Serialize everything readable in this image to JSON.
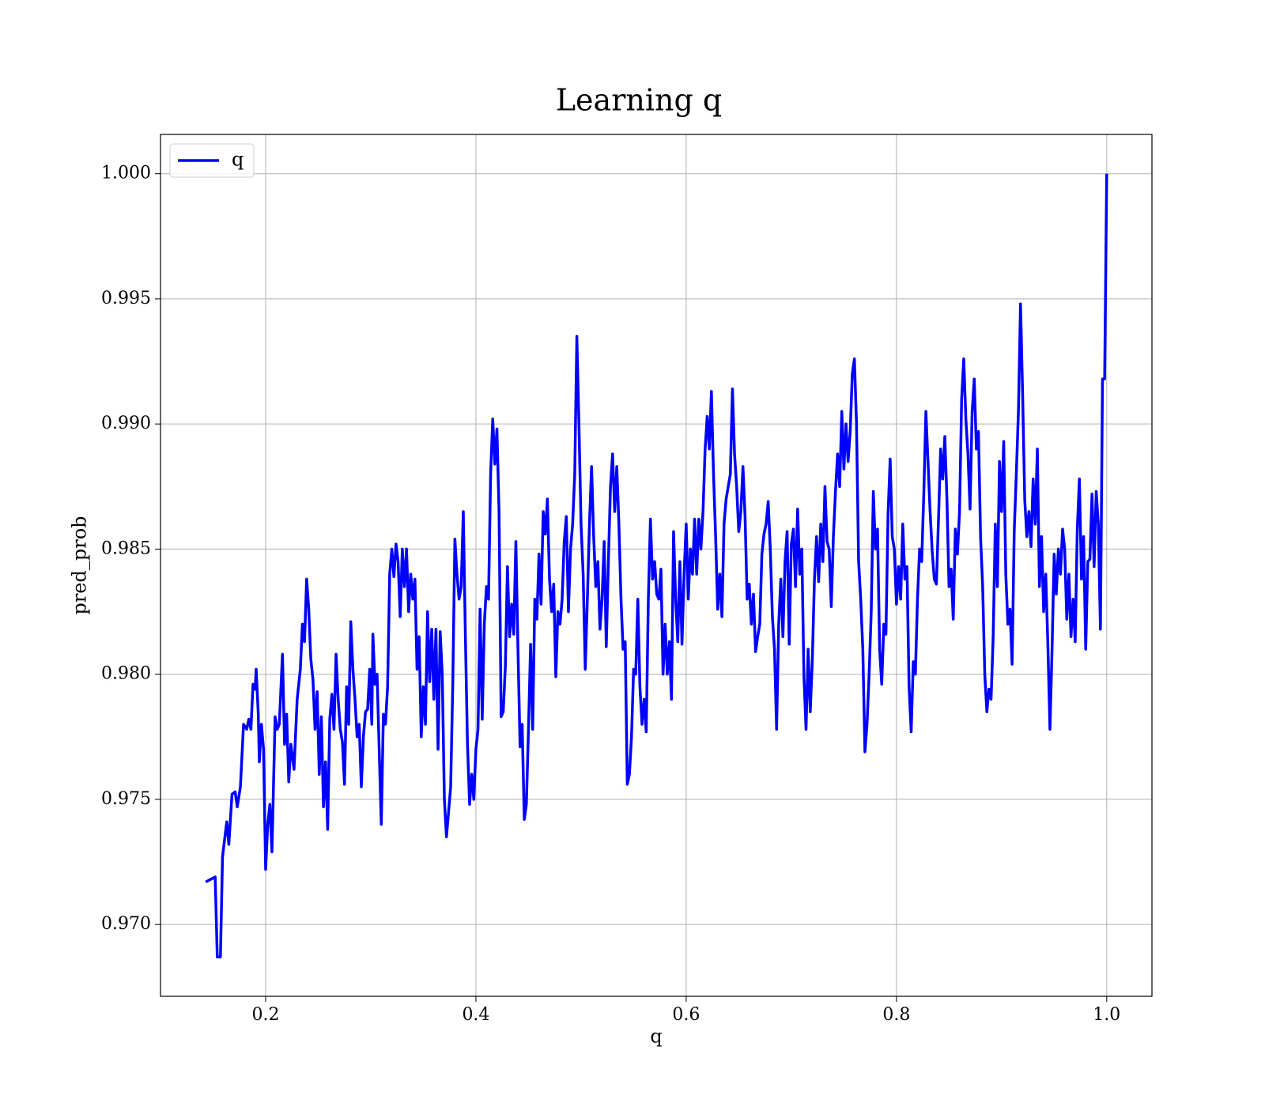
{
  "chart_data": {
    "type": "line",
    "title": "Learning q",
    "x_label": "q",
    "y_label": "pred_prob",
    "xlim": [
      0.1,
      1.043
    ],
    "ylim": [
      0.96713,
      1.00157
    ],
    "xticks": [
      0.2,
      0.4,
      0.6,
      0.8,
      {
        "value": 1,
        "label": "1.0"
      }
    ],
    "yticks": [
      {
        "value": 0.97,
        "label": "0.970"
      },
      0.975,
      {
        "value": 0.98,
        "label": "0.980"
      },
      0.985,
      {
        "value": 0.99,
        "label": "0.990"
      },
      0.995,
      {
        "value": 1,
        "label": "1.000"
      }
    ],
    "grid": true,
    "legend": "upper left",
    "x": [
      0.143,
      0.152,
      0.154,
      0.157,
      0.159,
      0.163,
      0.165,
      0.168,
      0.171,
      0.173,
      0.176,
      0.179,
      0.182,
      0.184,
      0.186,
      0.188,
      0.19,
      0.191,
      0.193,
      0.194,
      0.196,
      0.198,
      0.2,
      0.202,
      0.204,
      0.206,
      0.209,
      0.211,
      0.213,
      0.216,
      0.218,
      0.22,
      0.222,
      0.224,
      0.227,
      0.23,
      0.233,
      0.235,
      0.237,
      0.239,
      0.241,
      0.243,
      0.245,
      0.247,
      0.249,
      0.251,
      0.253,
      0.255,
      0.257,
      0.259,
      0.261,
      0.263,
      0.265,
      0.267,
      0.269,
      0.271,
      0.273,
      0.275,
      0.277,
      0.279,
      0.281,
      0.283,
      0.285,
      0.287,
      0.289,
      0.291,
      0.293,
      0.295,
      0.297,
      0.299,
      0.301,
      0.302,
      0.304,
      0.306,
      0.308,
      0.31,
      0.312,
      0.314,
      0.316,
      0.318,
      0.32,
      0.322,
      0.324,
      0.326,
      0.328,
      0.33,
      0.332,
      0.334,
      0.336,
      0.338,
      0.34,
      0.342,
      0.344,
      0.346,
      0.348,
      0.35,
      0.352,
      0.354,
      0.356,
      0.358,
      0.36,
      0.362,
      0.364,
      0.366,
      0.368,
      0.37,
      0.372,
      0.374,
      0.376,
      0.378,
      0.38,
      0.382,
      0.384,
      0.386,
      0.388,
      0.39,
      0.392,
      0.394,
      0.396,
      0.398,
      0.4,
      0.402,
      0.404,
      0.406,
      0.408,
      0.41,
      0.412,
      0.414,
      0.416,
      0.418,
      0.42,
      0.422,
      0.424,
      0.426,
      0.428,
      0.43,
      0.432,
      0.434,
      0.436,
      0.438,
      0.44,
      0.442,
      0.444,
      0.446,
      0.448,
      0.45,
      0.452,
      0.454,
      0.456,
      0.458,
      0.46,
      0.462,
      0.464,
      0.466,
      0.468,
      0.47,
      0.472,
      0.474,
      0.476,
      0.478,
      0.48,
      0.482,
      0.484,
      0.486,
      0.488,
      0.49,
      0.492,
      0.494,
      0.496,
      0.498,
      0.5,
      0.502,
      0.504,
      0.506,
      0.508,
      0.51,
      0.512,
      0.514,
      0.516,
      0.518,
      0.52,
      0.522,
      0.524,
      0.526,
      0.528,
      0.53,
      0.532,
      0.534,
      0.536,
      0.538,
      0.54,
      0.542,
      0.544,
      0.546,
      0.548,
      0.55,
      0.552,
      0.554,
      0.556,
      0.558,
      0.56,
      0.562,
      0.564,
      0.566,
      0.568,
      0.57,
      0.572,
      0.574,
      0.576,
      0.578,
      0.58,
      0.582,
      0.584,
      0.586,
      0.588,
      0.59,
      0.592,
      0.594,
      0.596,
      0.598,
      0.6,
      0.602,
      0.604,
      0.606,
      0.608,
      0.61,
      0.612,
      0.614,
      0.616,
      0.618,
      0.62,
      0.622,
      0.624,
      0.626,
      0.628,
      0.63,
      0.632,
      0.634,
      0.636,
      0.638,
      0.64,
      0.642,
      0.644,
      0.646,
      0.648,
      0.65,
      0.652,
      0.654,
      0.656,
      0.658,
      0.66,
      0.662,
      0.664,
      0.666,
      0.668,
      0.67,
      0.672,
      0.674,
      0.676,
      0.678,
      0.68,
      0.682,
      0.684,
      0.686,
      0.688,
      0.69,
      0.692,
      0.694,
      0.696,
      0.698,
      0.7,
      0.702,
      0.704,
      0.706,
      0.708,
      0.71,
      0.712,
      0.714,
      0.716,
      0.718,
      0.72,
      0.722,
      0.724,
      0.726,
      0.728,
      0.73,
      0.732,
      0.734,
      0.736,
      0.738,
      0.74,
      0.742,
      0.744,
      0.746,
      0.748,
      0.75,
      0.752,
      0.754,
      0.756,
      0.758,
      0.76,
      0.762,
      0.764,
      0.766,
      0.768,
      0.77,
      0.772,
      0.774,
      0.776,
      0.778,
      0.78,
      0.782,
      0.784,
      0.786,
      0.788,
      0.79,
      0.792,
      0.794,
      0.796,
      0.798,
      0.8,
      0.802,
      0.804,
      0.806,
      0.808,
      0.81,
      0.812,
      0.814,
      0.816,
      0.818,
      0.82,
      0.822,
      0.824,
      0.826,
      0.828,
      0.83,
      0.832,
      0.834,
      0.836,
      0.838,
      0.84,
      0.842,
      0.844,
      0.846,
      0.848,
      0.85,
      0.852,
      0.854,
      0.856,
      0.858,
      0.86,
      0.862,
      0.864,
      0.866,
      0.868,
      0.87,
      0.872,
      0.874,
      0.876,
      0.878,
      0.88,
      0.882,
      0.884,
      0.886,
      0.888,
      0.89,
      0.892,
      0.894,
      0.896,
      0.898,
      0.9,
      0.902,
      0.904,
      0.906,
      0.908,
      0.91,
      0.912,
      0.914,
      0.916,
      0.918,
      0.92,
      0.922,
      0.924,
      0.926,
      0.928,
      0.93,
      0.932,
      0.934,
      0.936,
      0.938,
      0.94,
      0.942,
      0.944,
      0.946,
      0.948,
      0.95,
      0.952,
      0.954,
      0.956,
      0.958,
      0.96,
      0.962,
      0.964,
      0.966,
      0.968,
      0.97,
      0.972,
      0.974,
      0.976,
      0.978,
      0.98,
      0.982,
      0.984,
      0.986,
      0.988,
      0.99,
      0.992,
      0.994,
      0.996,
      0.998,
      1.0
    ],
    "series": [
      {
        "name": "q",
        "color": "#0000ff",
        "values": [
          0.9717,
          0.9719,
          0.9687,
          0.9687,
          0.9727,
          0.9741,
          0.9732,
          0.9752,
          0.9753,
          0.9747,
          0.9755,
          0.978,
          0.9778,
          0.9782,
          0.9778,
          0.9796,
          0.9794,
          0.9802,
          0.9784,
          0.9765,
          0.978,
          0.977,
          0.9722,
          0.974,
          0.9748,
          0.9729,
          0.9783,
          0.9778,
          0.978,
          0.9808,
          0.9772,
          0.9784,
          0.9757,
          0.9772,
          0.9762,
          0.979,
          0.9802,
          0.982,
          0.9813,
          0.9838,
          0.9826,
          0.9806,
          0.9798,
          0.9778,
          0.9793,
          0.976,
          0.9783,
          0.9747,
          0.9765,
          0.9738,
          0.9782,
          0.9792,
          0.9778,
          0.9808,
          0.979,
          0.9778,
          0.9773,
          0.9756,
          0.9795,
          0.978,
          0.9821,
          0.9802,
          0.979,
          0.9775,
          0.978,
          0.9755,
          0.9775,
          0.9785,
          0.9786,
          0.9802,
          0.978,
          0.9816,
          0.9796,
          0.98,
          0.977,
          0.974,
          0.9784,
          0.978,
          0.9795,
          0.984,
          0.985,
          0.9839,
          0.9852,
          0.9845,
          0.9823,
          0.985,
          0.9835,
          0.985,
          0.9825,
          0.984,
          0.983,
          0.9838,
          0.9802,
          0.9815,
          0.9775,
          0.9795,
          0.978,
          0.9825,
          0.9797,
          0.9818,
          0.979,
          0.9818,
          0.977,
          0.9817,
          0.98,
          0.975,
          0.9735,
          0.9745,
          0.9755,
          0.9796,
          0.9854,
          0.984,
          0.983,
          0.9835,
          0.9865,
          0.9815,
          0.9772,
          0.9748,
          0.976,
          0.975,
          0.977,
          0.9778,
          0.9826,
          0.9782,
          0.982,
          0.9835,
          0.983,
          0.988,
          0.9902,
          0.9884,
          0.9898,
          0.9865,
          0.9783,
          0.9785,
          0.9803,
          0.9843,
          0.9815,
          0.9828,
          0.9816,
          0.9853,
          0.981,
          0.9771,
          0.978,
          0.9742,
          0.9748,
          0.9778,
          0.9812,
          0.9778,
          0.983,
          0.9822,
          0.9848,
          0.9828,
          0.9865,
          0.9856,
          0.987,
          0.9838,
          0.9825,
          0.9836,
          0.9799,
          0.9825,
          0.982,
          0.983,
          0.9853,
          0.9863,
          0.9825,
          0.985,
          0.986,
          0.988,
          0.9935,
          0.99,
          0.986,
          0.984,
          0.9802,
          0.983,
          0.986,
          0.9883,
          0.9855,
          0.9835,
          0.9845,
          0.9818,
          0.983,
          0.9853,
          0.9811,
          0.9845,
          0.9875,
          0.9888,
          0.9865,
          0.9883,
          0.986,
          0.983,
          0.981,
          0.9813,
          0.9756,
          0.976,
          0.9775,
          0.9802,
          0.98,
          0.983,
          0.9795,
          0.978,
          0.979,
          0.9777,
          0.983,
          0.9862,
          0.9838,
          0.9845,
          0.9832,
          0.983,
          0.9842,
          0.98,
          0.982,
          0.98,
          0.9813,
          0.979,
          0.9857,
          0.983,
          0.9813,
          0.9845,
          0.9812,
          0.984,
          0.986,
          0.983,
          0.985,
          0.984,
          0.9862,
          0.984,
          0.9862,
          0.985,
          0.9865,
          0.989,
          0.9903,
          0.989,
          0.9913,
          0.988,
          0.9855,
          0.9826,
          0.984,
          0.9823,
          0.986,
          0.987,
          0.9875,
          0.988,
          0.9914,
          0.9888,
          0.9875,
          0.9857,
          0.9865,
          0.9883,
          0.9863,
          0.983,
          0.9836,
          0.982,
          0.9832,
          0.9809,
          0.9815,
          0.982,
          0.9848,
          0.9856,
          0.986,
          0.9869,
          0.985,
          0.9823,
          0.981,
          0.9778,
          0.982,
          0.9838,
          0.9815,
          0.9845,
          0.9857,
          0.9812,
          0.9852,
          0.9858,
          0.9835,
          0.9866,
          0.984,
          0.985,
          0.9799,
          0.9778,
          0.981,
          0.9785,
          0.9806,
          0.9838,
          0.9855,
          0.9837,
          0.986,
          0.9845,
          0.9875,
          0.9853,
          0.985,
          0.9827,
          0.9855,
          0.9873,
          0.9888,
          0.9875,
          0.9905,
          0.9882,
          0.99,
          0.9885,
          0.9897,
          0.992,
          0.9926,
          0.99,
          0.9845,
          0.983,
          0.981,
          0.9769,
          0.978,
          0.98,
          0.9825,
          0.9873,
          0.985,
          0.9858,
          0.981,
          0.9796,
          0.982,
          0.9816,
          0.9864,
          0.9886,
          0.9855,
          0.985,
          0.9828,
          0.9843,
          0.983,
          0.986,
          0.9838,
          0.9843,
          0.9795,
          0.9777,
          0.9805,
          0.98,
          0.983,
          0.985,
          0.9845,
          0.9872,
          0.9905,
          0.9885,
          0.9865,
          0.9849,
          0.9838,
          0.9836,
          0.9862,
          0.989,
          0.9878,
          0.9895,
          0.987,
          0.9835,
          0.9842,
          0.9822,
          0.9858,
          0.9848,
          0.9865,
          0.991,
          0.9926,
          0.9902,
          0.9888,
          0.9866,
          0.9905,
          0.9918,
          0.989,
          0.9897,
          0.9855,
          0.9835,
          0.98,
          0.9785,
          0.9794,
          0.979,
          0.9815,
          0.986,
          0.9835,
          0.9885,
          0.9865,
          0.9893,
          0.984,
          0.982,
          0.9826,
          0.9804,
          0.9857,
          0.988,
          0.9905,
          0.9948,
          0.9912,
          0.987,
          0.9855,
          0.9865,
          0.9851,
          0.9878,
          0.986,
          0.989,
          0.9835,
          0.9855,
          0.9825,
          0.984,
          0.9812,
          0.9778,
          0.981,
          0.9848,
          0.9832,
          0.985,
          0.984,
          0.9858,
          0.985,
          0.9822,
          0.984,
          0.9815,
          0.983,
          0.9813,
          0.9858,
          0.9878,
          0.9838,
          0.9855,
          0.981,
          0.9845,
          0.9846,
          0.9872,
          0.9843,
          0.9873,
          0.986,
          0.9818,
          0.9918,
          0.9918,
          1.0
        ]
      }
    ]
  }
}
